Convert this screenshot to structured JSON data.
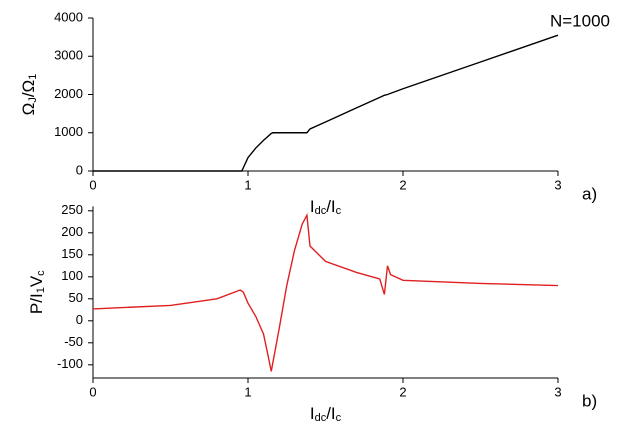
{
  "chart_data": [
    {
      "type": "line",
      "annotation": "N=1000",
      "panel": "a)",
      "ylabel": [
        "Ω",
        "J",
        "/Ω",
        "1"
      ],
      "xlabel": [
        "I",
        "dc",
        "/I",
        "c"
      ],
      "xlim": [
        0,
        3
      ],
      "xticks": [
        0,
        1,
        2,
        3
      ],
      "ylim": [
        0,
        4000
      ],
      "yticks": [
        0,
        1000,
        2000,
        3000,
        4000
      ],
      "x": [
        0,
        0.5,
        0.96,
        1.0,
        1.05,
        1.1,
        1.15,
        1.16,
        1.38,
        1.4,
        1.5,
        1.7,
        1.88,
        1.9,
        2.0,
        2.5,
        3.0
      ],
      "series": [
        {
          "color": "#000000",
          "values": [
            0,
            0,
            0,
            350,
            600,
            800,
            980,
            1000,
            1000,
            1100,
            1280,
            1650,
            1980,
            2000,
            2150,
            2850,
            3550
          ]
        }
      ]
    },
    {
      "type": "line",
      "panel": "b)",
      "ylabel": [
        "P/I",
        "1",
        "V",
        "c"
      ],
      "xlabel": [
        "I",
        "dc",
        "/I",
        "c"
      ],
      "xlim": [
        0,
        3
      ],
      "xticks": [
        0,
        1,
        2,
        3
      ],
      "ylim": [
        -130,
        260
      ],
      "yticks": [
        -100,
        -50,
        0,
        50,
        100,
        150,
        200,
        250
      ],
      "x": [
        0,
        0.5,
        0.8,
        0.95,
        0.97,
        1.0,
        1.05,
        1.1,
        1.13,
        1.15,
        1.2,
        1.25,
        1.3,
        1.35,
        1.38,
        1.4,
        1.5,
        1.7,
        1.85,
        1.88,
        1.9,
        1.92,
        2.0,
        2.5,
        3.0
      ],
      "series": [
        {
          "color": "#e02020",
          "values": [
            27,
            35,
            50,
            70,
            65,
            40,
            10,
            -30,
            -80,
            -115,
            -20,
            80,
            160,
            220,
            240,
            170,
            135,
            110,
            95,
            60,
            125,
            105,
            92,
            85,
            80
          ]
        }
      ]
    }
  ]
}
